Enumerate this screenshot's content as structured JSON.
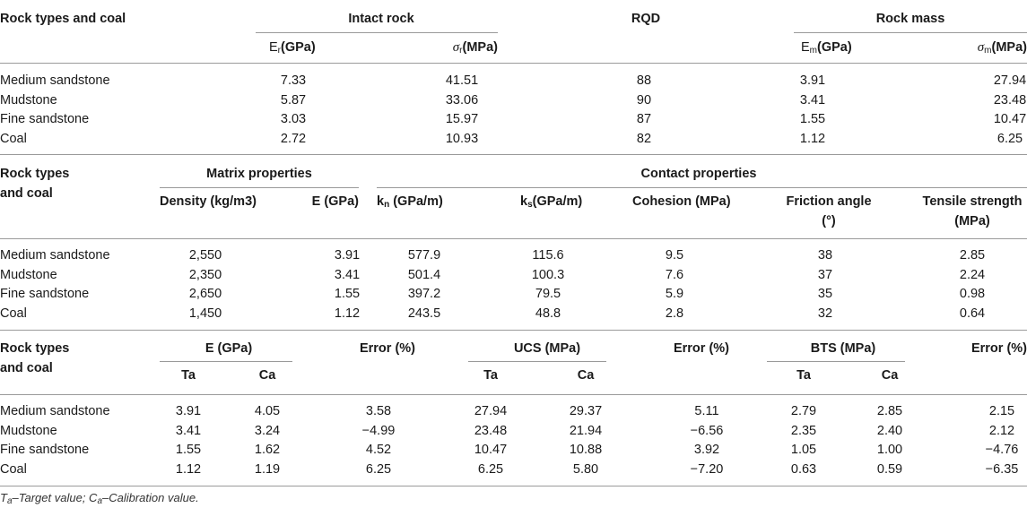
{
  "table1": {
    "col_rock": "Rock types and coal",
    "group_intact": "Intact rock",
    "col_rqd": "RQD",
    "group_mass": "Rock mass",
    "sub_er": {
      "base": "E",
      "sub": "r",
      "unit": "(GPa)"
    },
    "sub_sr": {
      "base": "σ",
      "sub": "r",
      "unit": "(MPa)"
    },
    "sub_em": {
      "base": "E",
      "sub": "m",
      "unit": "(GPa)"
    },
    "sub_sm": {
      "base": "σ",
      "sub": "m",
      "unit": "(MPa)"
    },
    "rows": [
      {
        "name": "Medium sandstone",
        "er": "7.33",
        "sr": "41.51",
        "rqd": "88",
        "em": "3.91",
        "sm": "27.94"
      },
      {
        "name": "Mudstone",
        "er": "5.87",
        "sr": "33.06",
        "rqd": "90",
        "em": "3.41",
        "sm": "23.48"
      },
      {
        "name": "Fine sandstone",
        "er": "3.03",
        "sr": "15.97",
        "rqd": "87",
        "em": "1.55",
        "sm": "10.47"
      },
      {
        "name": "Coal",
        "er": "2.72",
        "sr": "10.93",
        "rqd": "82",
        "em": "1.12",
        "sm": "6.25"
      }
    ]
  },
  "table2": {
    "col_rock_1": "Rock types",
    "col_rock_2": "and coal",
    "group_matrix": "Matrix properties",
    "group_contact": "Contact properties",
    "h_density": "Density (kg/m3)",
    "h_e": "E (GPa)",
    "h_kn": {
      "base": "k",
      "sub": "n",
      "unit": " (GPa/m)"
    },
    "h_ks": {
      "base": "k",
      "sub": "s",
      "unit": "(GPa/m)"
    },
    "h_cohesion": "Cohesion (MPa)",
    "h_friction_1": "Friction angle",
    "h_friction_2": "(°)",
    "h_tensile_1": "Tensile strength",
    "h_tensile_2": "(MPa)",
    "rows": [
      {
        "name": "Medium sandstone",
        "density": "2,550",
        "e": "3.91",
        "kn": "577.9",
        "ks": "115.6",
        "coh": "9.5",
        "fric": "38",
        "ten": "2.85"
      },
      {
        "name": "Mudstone",
        "density": "2,350",
        "e": "3.41",
        "kn": "501.4",
        "ks": "100.3",
        "coh": "7.6",
        "fric": "37",
        "ten": "2.24"
      },
      {
        "name": "Fine sandstone",
        "density": "2,650",
        "e": "1.55",
        "kn": "397.2",
        "ks": "79.5",
        "coh": "5.9",
        "fric": "35",
        "ten": "0.98"
      },
      {
        "name": "Coal",
        "density": "1,450",
        "e": "1.12",
        "kn": "243.5",
        "ks": "48.8",
        "coh": "2.8",
        "fric": "32",
        "ten": "0.64"
      }
    ]
  },
  "table3": {
    "col_rock_1": "Rock types",
    "col_rock_2": "and coal",
    "group_e": "E (GPa)",
    "group_ucs": "UCS (MPa)",
    "group_bts": "BTS (MPa)",
    "h_error": "Error (%)",
    "h_ta": "Ta",
    "h_ca": "Ca",
    "rows": [
      {
        "name": "Medium sandstone",
        "e_ta": "3.91",
        "e_ca": "4.05",
        "e_err": "3.58",
        "u_ta": "27.94",
        "u_ca": "29.37",
        "u_err": "5.11",
        "b_ta": "2.79",
        "b_ca": "2.85",
        "b_err": "2.15"
      },
      {
        "name": "Mudstone",
        "e_ta": "3.41",
        "e_ca": "3.24",
        "e_err": "−4.99",
        "u_ta": "23.48",
        "u_ca": "21.94",
        "u_err": "−6.56",
        "b_ta": "2.35",
        "b_ca": "2.40",
        "b_err": "2.12"
      },
      {
        "name": "Fine sandstone",
        "e_ta": "1.55",
        "e_ca": "1.62",
        "e_err": "4.52",
        "u_ta": "10.47",
        "u_ca": "10.88",
        "u_err": "3.92",
        "b_ta": "1.05",
        "b_ca": "1.00",
        "b_err": "−4.76"
      },
      {
        "name": "Coal",
        "e_ta": "1.12",
        "e_ca": "1.19",
        "e_err": "6.25",
        "u_ta": "6.25",
        "u_ca": "5.80",
        "u_err": "−7.20",
        "b_ta": "0.63",
        "b_ca": "0.59",
        "b_err": "−6.35"
      }
    ]
  },
  "footnote": {
    "ta_sym": "T",
    "ta_sub": "a",
    "ta_text": "–Target value; ",
    "ca_sym": "C",
    "ca_sub": "a",
    "ca_text": "–Calibration value."
  }
}
